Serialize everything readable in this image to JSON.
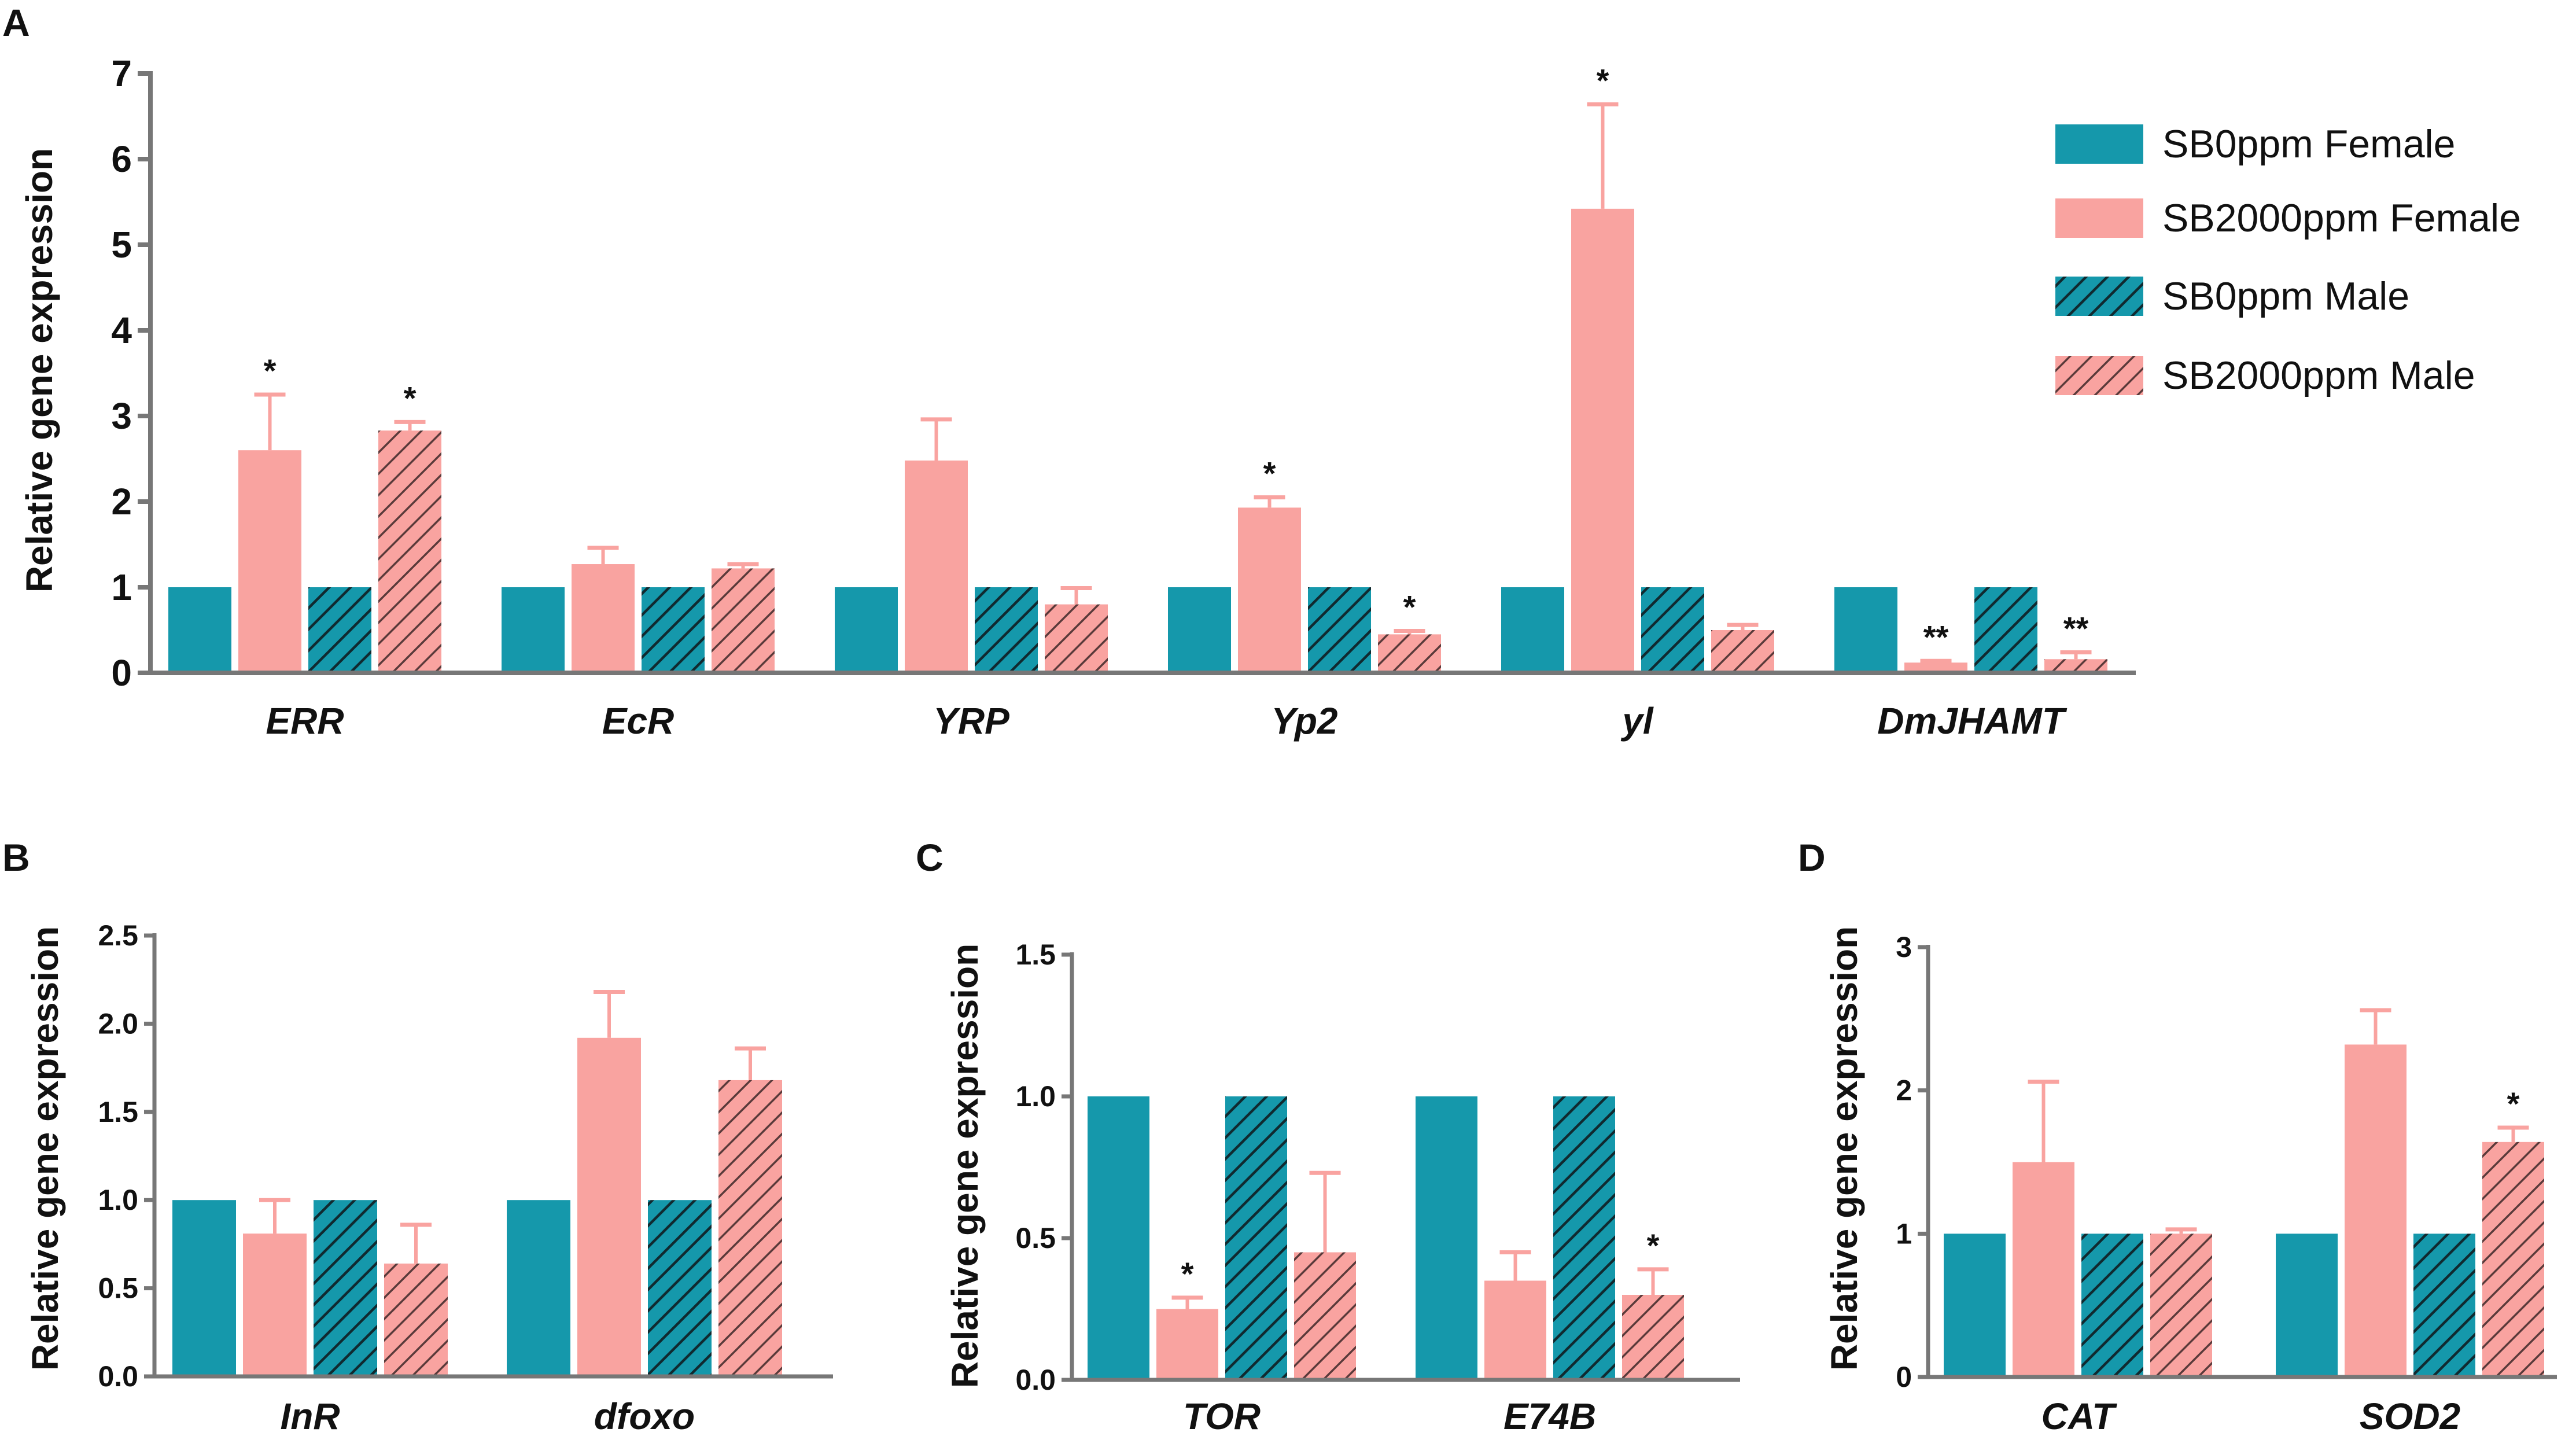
{
  "colors": {
    "female_control": "#1598ab",
    "female_treated": "#f9a3a0",
    "male_control": "#1598ab",
    "male_treated": "#f9a3a0",
    "axis": "#777777",
    "hatch_dark": "#102a30",
    "hatch_pink": "#5a3a3a"
  },
  "legend": {
    "items": [
      {
        "label": "SB0ppm Female",
        "style": "female_control"
      },
      {
        "label": "SB2000ppm Female",
        "style": "female_treated"
      },
      {
        "label": "SB0ppm Male",
        "style": "male_control"
      },
      {
        "label": "SB2000ppm Male",
        "style": "male_treated"
      }
    ]
  },
  "chart_data": [
    {
      "panel": "A",
      "type": "bar",
      "ylabel": "Relative gene expression",
      "ylim": [
        0,
        7
      ],
      "yticks": [
        "0",
        "1",
        "2",
        "3",
        "4",
        "5",
        "6",
        "7"
      ],
      "categories": [
        "ERR",
        "EcR",
        "YRP",
        "Yp2",
        "yl",
        "DmJHAMT"
      ],
      "series": [
        {
          "name": "SB0ppm Female",
          "style": "female_control",
          "values": [
            1.0,
            1.0,
            1.0,
            1.0,
            1.0,
            1.0
          ],
          "errors": [
            0,
            0,
            0,
            0,
            0,
            0
          ],
          "sig": [
            "",
            "",
            "",
            "",
            "",
            ""
          ]
        },
        {
          "name": "SB2000ppm Female",
          "style": "female_treated",
          "values": [
            2.6,
            1.27,
            2.48,
            1.93,
            5.42,
            0.12
          ],
          "errors": [
            0.65,
            0.19,
            0.48,
            0.12,
            1.22,
            0.02
          ],
          "sig": [
            "*",
            "",
            "",
            "*",
            "*",
            "**"
          ]
        },
        {
          "name": "SB0ppm Male",
          "style": "male_control",
          "values": [
            1.0,
            1.0,
            1.0,
            1.0,
            1.0,
            1.0
          ],
          "errors": [
            0,
            0,
            0,
            0,
            0,
            0
          ],
          "sig": [
            "",
            "",
            "",
            "",
            "",
            ""
          ]
        },
        {
          "name": "SB2000ppm Male",
          "style": "male_treated",
          "values": [
            2.83,
            1.22,
            0.8,
            0.45,
            0.5,
            0.16
          ],
          "errors": [
            0.1,
            0.05,
            0.19,
            0.04,
            0.06,
            0.08
          ],
          "sig": [
            "*",
            "",
            "",
            "*",
            "",
            "**"
          ]
        }
      ]
    },
    {
      "panel": "B",
      "type": "bar",
      "ylabel": "Relative gene expression",
      "ylim": [
        0,
        2.5
      ],
      "yticks": [
        "0.0",
        "0.5",
        "1.0",
        "1.5",
        "2.0",
        "2.5"
      ],
      "categories": [
        "InR",
        "dfoxo"
      ],
      "series": [
        {
          "name": "SB0ppm Female",
          "style": "female_control",
          "values": [
            1.0,
            1.0
          ],
          "errors": [
            0,
            0
          ],
          "sig": [
            "",
            ""
          ]
        },
        {
          "name": "SB2000ppm Female",
          "style": "female_treated",
          "values": [
            0.81,
            1.92
          ],
          "errors": [
            0.19,
            0.26
          ],
          "sig": [
            "",
            ""
          ]
        },
        {
          "name": "SB0ppm Male",
          "style": "male_control",
          "values": [
            1.0,
            1.0
          ],
          "errors": [
            0,
            0
          ],
          "sig": [
            "",
            ""
          ]
        },
        {
          "name": "SB2000ppm Male",
          "style": "male_treated",
          "values": [
            0.64,
            1.68
          ],
          "errors": [
            0.22,
            0.18
          ],
          "sig": [
            "",
            ""
          ]
        }
      ]
    },
    {
      "panel": "C",
      "type": "bar",
      "ylabel": "Relative gene expression",
      "ylim": [
        0,
        1.5
      ],
      "yticks": [
        "0.0",
        "0.5",
        "1.0",
        "1.5"
      ],
      "categories": [
        "TOR",
        "E74B"
      ],
      "series": [
        {
          "name": "SB0ppm Female",
          "style": "female_control",
          "values": [
            1.0,
            1.0
          ],
          "errors": [
            0,
            0
          ],
          "sig": [
            "",
            ""
          ]
        },
        {
          "name": "SB2000ppm Female",
          "style": "female_treated",
          "values": [
            0.25,
            0.35
          ],
          "errors": [
            0.04,
            0.1
          ],
          "sig": [
            "*",
            ""
          ]
        },
        {
          "name": "SB0ppm Male",
          "style": "male_control",
          "values": [
            1.0,
            1.0
          ],
          "errors": [
            0,
            0
          ],
          "sig": [
            "",
            ""
          ]
        },
        {
          "name": "SB2000ppm Male",
          "style": "male_treated",
          "values": [
            0.45,
            0.3
          ],
          "errors": [
            0.28,
            0.09
          ],
          "sig": [
            "",
            "*"
          ]
        }
      ]
    },
    {
      "panel": "D",
      "type": "bar",
      "ylabel": "Relative gene expression",
      "ylim": [
        0,
        3
      ],
      "yticks": [
        "0",
        "1",
        "2",
        "3"
      ],
      "categories": [
        "CAT",
        "SOD2"
      ],
      "series": [
        {
          "name": "SB0ppm Female",
          "style": "female_control",
          "values": [
            1.0,
            1.0
          ],
          "errors": [
            0,
            0
          ],
          "sig": [
            "",
            ""
          ]
        },
        {
          "name": "SB2000ppm Female",
          "style": "female_treated",
          "values": [
            1.5,
            2.32
          ],
          "errors": [
            0.56,
            0.24
          ],
          "sig": [
            "",
            ""
          ]
        },
        {
          "name": "SB0ppm Male",
          "style": "male_control",
          "values": [
            1.0,
            1.0
          ],
          "errors": [
            0,
            0
          ],
          "sig": [
            "",
            ""
          ]
        },
        {
          "name": "SB2000ppm Male",
          "style": "male_treated",
          "values": [
            1.0,
            1.64
          ],
          "errors": [
            0.03,
            0.1
          ],
          "sig": [
            "",
            "*"
          ]
        }
      ]
    }
  ]
}
